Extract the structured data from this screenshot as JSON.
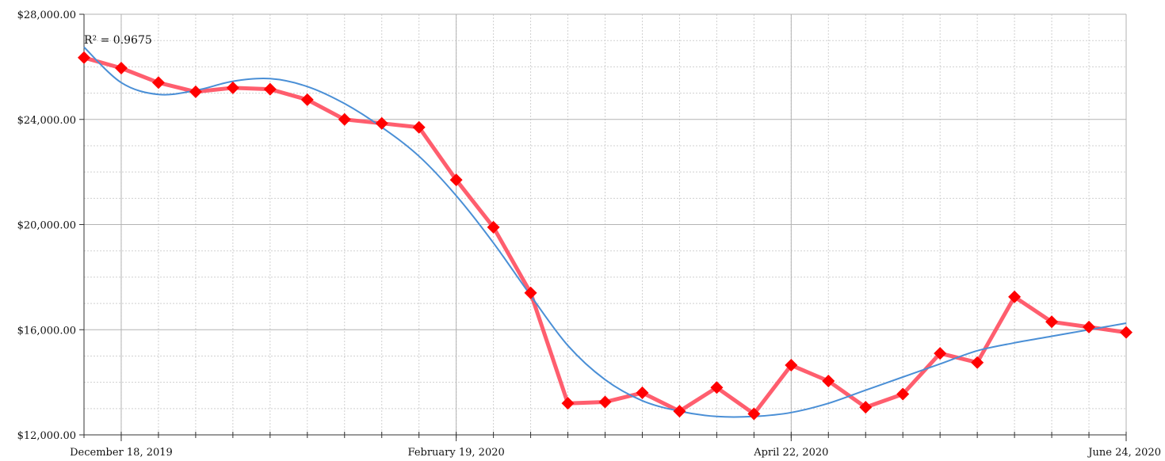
{
  "chart_data": {
    "type": "line",
    "title": "",
    "xlabel": "",
    "ylabel": "",
    "ylim": [
      12000,
      28000
    ],
    "yticks": [
      12000,
      16000,
      20000,
      24000,
      28000
    ],
    "ytick_labels": [
      "$12,000.00",
      "$16,000.00",
      "$20,000.00",
      "$24,000.00",
      "$28,000.00"
    ],
    "xticks": [
      "2019-12-18",
      "2020-02-19",
      "2020-04-22",
      "2020-06-24"
    ],
    "xtick_labels": [
      "December 18, 2019",
      "February 19, 2020",
      "April 22, 2020",
      "June 24, 2020"
    ],
    "grid": true,
    "legend": "none",
    "annotation": "R² = 0.9675",
    "colors": {
      "series": "#ff4d5e",
      "marker": "#ff0000",
      "trend": "#4a8fd6",
      "grid_major": "#b3b3b3",
      "grid_minor": "#d0d0d0",
      "axis": "#333333"
    },
    "series": [
      {
        "x": [
          "2019-12-11",
          "2019-12-18",
          "2019-12-25",
          "2020-01-01",
          "2020-01-08",
          "2020-01-15",
          "2020-01-22",
          "2020-01-29",
          "2020-02-05",
          "2020-02-12",
          "2020-02-19",
          "2020-02-26",
          "2020-03-04",
          "2020-03-11",
          "2020-03-18",
          "2020-03-25",
          "2020-04-01",
          "2020-04-08",
          "2020-04-15",
          "2020-04-22",
          "2020-04-29",
          "2020-05-06",
          "2020-05-13",
          "2020-05-20",
          "2020-05-27",
          "2020-06-03",
          "2020-06-10",
          "2020-06-17",
          "2020-06-24"
        ],
        "values": [
          26350,
          25950,
          25400,
          25050,
          25200,
          25150,
          24750,
          24000,
          23850,
          23700,
          21700,
          19900,
          17400,
          13200,
          13250,
          13600,
          12900,
          13800,
          12800,
          14650,
          14050,
          13050,
          13550,
          15100,
          14750,
          17250,
          16300,
          16100,
          15900
        ]
      }
    ],
    "trendline": {
      "type": "polynomial",
      "x": [
        "2019-12-11",
        "2019-12-18",
        "2019-12-25",
        "2020-01-01",
        "2020-01-08",
        "2020-01-15",
        "2020-01-22",
        "2020-01-29",
        "2020-02-05",
        "2020-02-12",
        "2020-02-19",
        "2020-02-26",
        "2020-03-04",
        "2020-03-11",
        "2020-03-18",
        "2020-03-25",
        "2020-04-01",
        "2020-04-08",
        "2020-04-15",
        "2020-04-22",
        "2020-04-29",
        "2020-05-06",
        "2020-05-13",
        "2020-05-20",
        "2020-05-27",
        "2020-06-03",
        "2020-06-10",
        "2020-06-17",
        "2020-06-24"
      ],
      "values": [
        26750,
        25400,
        24950,
        25100,
        25450,
        25550,
        25250,
        24600,
        23700,
        22600,
        21100,
        19300,
        17300,
        15400,
        14100,
        13300,
        12900,
        12700,
        12700,
        12850,
        13200,
        13700,
        14200,
        14700,
        15200,
        15500,
        15750,
        16000,
        16250
      ]
    }
  }
}
